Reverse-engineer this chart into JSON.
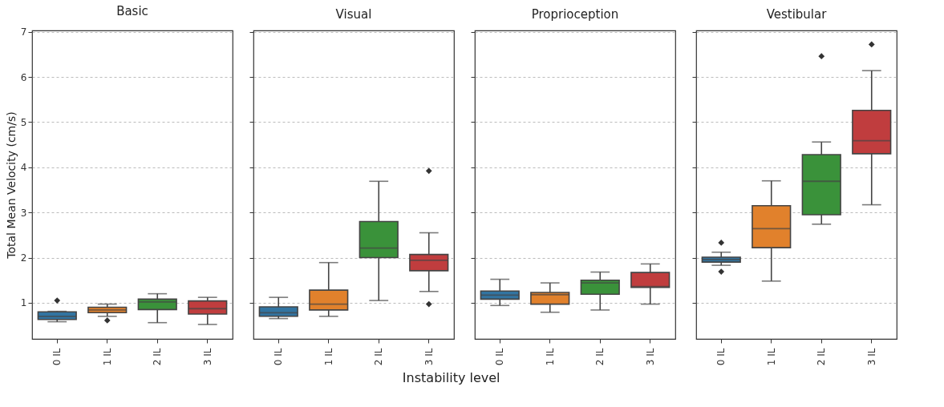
{
  "chart_data": [
    {
      "type": "box",
      "title": "Basic",
      "ylabel": "Total Mean Velocity (cm/s)",
      "categories": [
        "0 IL",
        "1 IL",
        "2 IL",
        "3 IL"
      ],
      "colors": [
        "#3274a1",
        "#e1812c",
        "#3a923a",
        "#c03d3e"
      ],
      "ylim": [
        0.2,
        7.03
      ],
      "yticks": [
        1,
        2,
        3,
        4,
        5,
        6,
        7
      ],
      "grid": "y",
      "marker": "diamond",
      "boxes": [
        {
          "low": 0.58,
          "q1": 0.63,
          "median": 0.7,
          "q3": 0.8,
          "high": 0.81,
          "outliers": [
            1.05
          ]
        },
        {
          "low": 0.7,
          "q1": 0.78,
          "median": 0.84,
          "q3": 0.9,
          "high": 0.97,
          "outliers": [
            0.61
          ]
        },
        {
          "low": 0.56,
          "q1": 0.85,
          "median": 1.02,
          "q3": 1.08,
          "high": 1.2
        },
        {
          "low": 0.52,
          "q1": 0.75,
          "median": 0.87,
          "q3": 1.04,
          "high": 1.12
        }
      ]
    },
    {
      "type": "box",
      "title": "Visual",
      "xlabel": "Instability level",
      "categories": [
        "0 IL",
        "1 IL",
        "2 IL",
        "3 IL"
      ],
      "colors": [
        "#3274a1",
        "#e1812c",
        "#3a923a",
        "#c03d3e"
      ],
      "ylim": [
        0.2,
        7.03
      ],
      "yticks": [
        1,
        2,
        3,
        4,
        5,
        6,
        7
      ],
      "tick_labels": "x",
      "grid": "y",
      "marker": "diamond",
      "boxes": [
        {
          "low": 0.65,
          "q1": 0.7,
          "median": 0.78,
          "q3": 0.91,
          "high": 1.12
        },
        {
          "low": 0.7,
          "q1": 0.84,
          "median": 0.97,
          "q3": 1.28,
          "high": 1.89
        },
        {
          "low": 1.05,
          "q1": 2.0,
          "median": 2.21,
          "q3": 2.8,
          "high": 3.69
        },
        {
          "low": 1.25,
          "q1": 1.71,
          "median": 1.94,
          "q3": 2.07,
          "high": 2.55,
          "outliers": [
            3.92,
            0.97
          ]
        }
      ]
    },
    {
      "type": "box",
      "title": "Proprioception",
      "categories": [
        "0 IL",
        "1 IL",
        "2 IL",
        "3 IL"
      ],
      "colors": [
        "#3274a1",
        "#e1812c",
        "#3a923a",
        "#c03d3e"
      ],
      "ylim": [
        0.2,
        7.03
      ],
      "yticks": [
        1,
        2,
        3,
        4,
        5,
        6,
        7
      ],
      "tick_labels": "x",
      "grid": "y",
      "marker": "diamond",
      "boxes": [
        {
          "low": 0.94,
          "q1": 1.08,
          "median": 1.17,
          "q3": 1.26,
          "high": 1.52
        },
        {
          "low": 0.79,
          "q1": 0.97,
          "median": 1.18,
          "q3": 1.23,
          "high": 1.44
        },
        {
          "low": 0.84,
          "q1": 1.19,
          "median": 1.44,
          "q3": 1.5,
          "high": 1.68
        },
        {
          "low": 0.97,
          "q1": 1.34,
          "median": 1.36,
          "q3": 1.67,
          "high": 1.86
        }
      ]
    },
    {
      "type": "box",
      "title": "Vestibular",
      "categories": [
        "0 IL",
        "1 IL",
        "2 IL",
        "3 IL"
      ],
      "colors": [
        "#3274a1",
        "#e1812c",
        "#3a923a",
        "#c03d3e"
      ],
      "ylim": [
        0.2,
        7.03
      ],
      "yticks": [
        1,
        2,
        3,
        4,
        5,
        6,
        7
      ],
      "tick_labels": "x",
      "grid": "y",
      "marker": "diamond",
      "boxes": [
        {
          "low": 1.83,
          "q1": 1.9,
          "median": 1.96,
          "q3": 2.01,
          "high": 2.12,
          "outliers": [
            2.33,
            1.69
          ]
        },
        {
          "low": 1.48,
          "q1": 2.22,
          "median": 2.64,
          "q3": 3.15,
          "high": 3.7
        },
        {
          "low": 2.74,
          "q1": 2.95,
          "median": 3.69,
          "q3": 4.28,
          "high": 4.56,
          "outliers": [
            6.46
          ]
        },
        {
          "low": 3.17,
          "q1": 4.3,
          "median": 4.59,
          "q3": 5.26,
          "high": 6.14,
          "outliers": [
            6.72
          ]
        }
      ]
    }
  ]
}
